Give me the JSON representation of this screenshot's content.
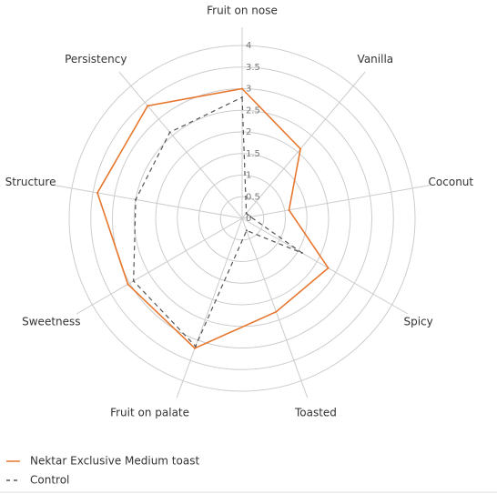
{
  "chart_data": {
    "type": "radar",
    "categories": [
      "Fruit on nose",
      "Vanilla",
      "Coconut",
      "Spicy",
      "Toasted",
      "Fruit on palate",
      "Sweetness",
      "Structure",
      "Persistency"
    ],
    "rlim": [
      0,
      4
    ],
    "rticks": [
      0,
      0.5,
      1,
      1.5,
      2,
      2.5,
      3,
      3.5,
      4
    ],
    "grid": true,
    "legend": "bottom-left",
    "series": [
      {
        "name": "Nektar Exclusive Medium toast",
        "color": "#e8772e",
        "dash": false,
        "values": [
          3,
          2.1,
          1.1,
          2.3,
          2.3,
          3.2,
          3.05,
          3.4,
          3.4
        ]
      },
      {
        "name": "Control",
        "color": "#555555",
        "dash": true,
        "values": [
          2.8,
          0.15,
          0.2,
          1.6,
          0.3,
          3.15,
          2.9,
          2.5,
          2.6
        ]
      }
    ]
  }
}
